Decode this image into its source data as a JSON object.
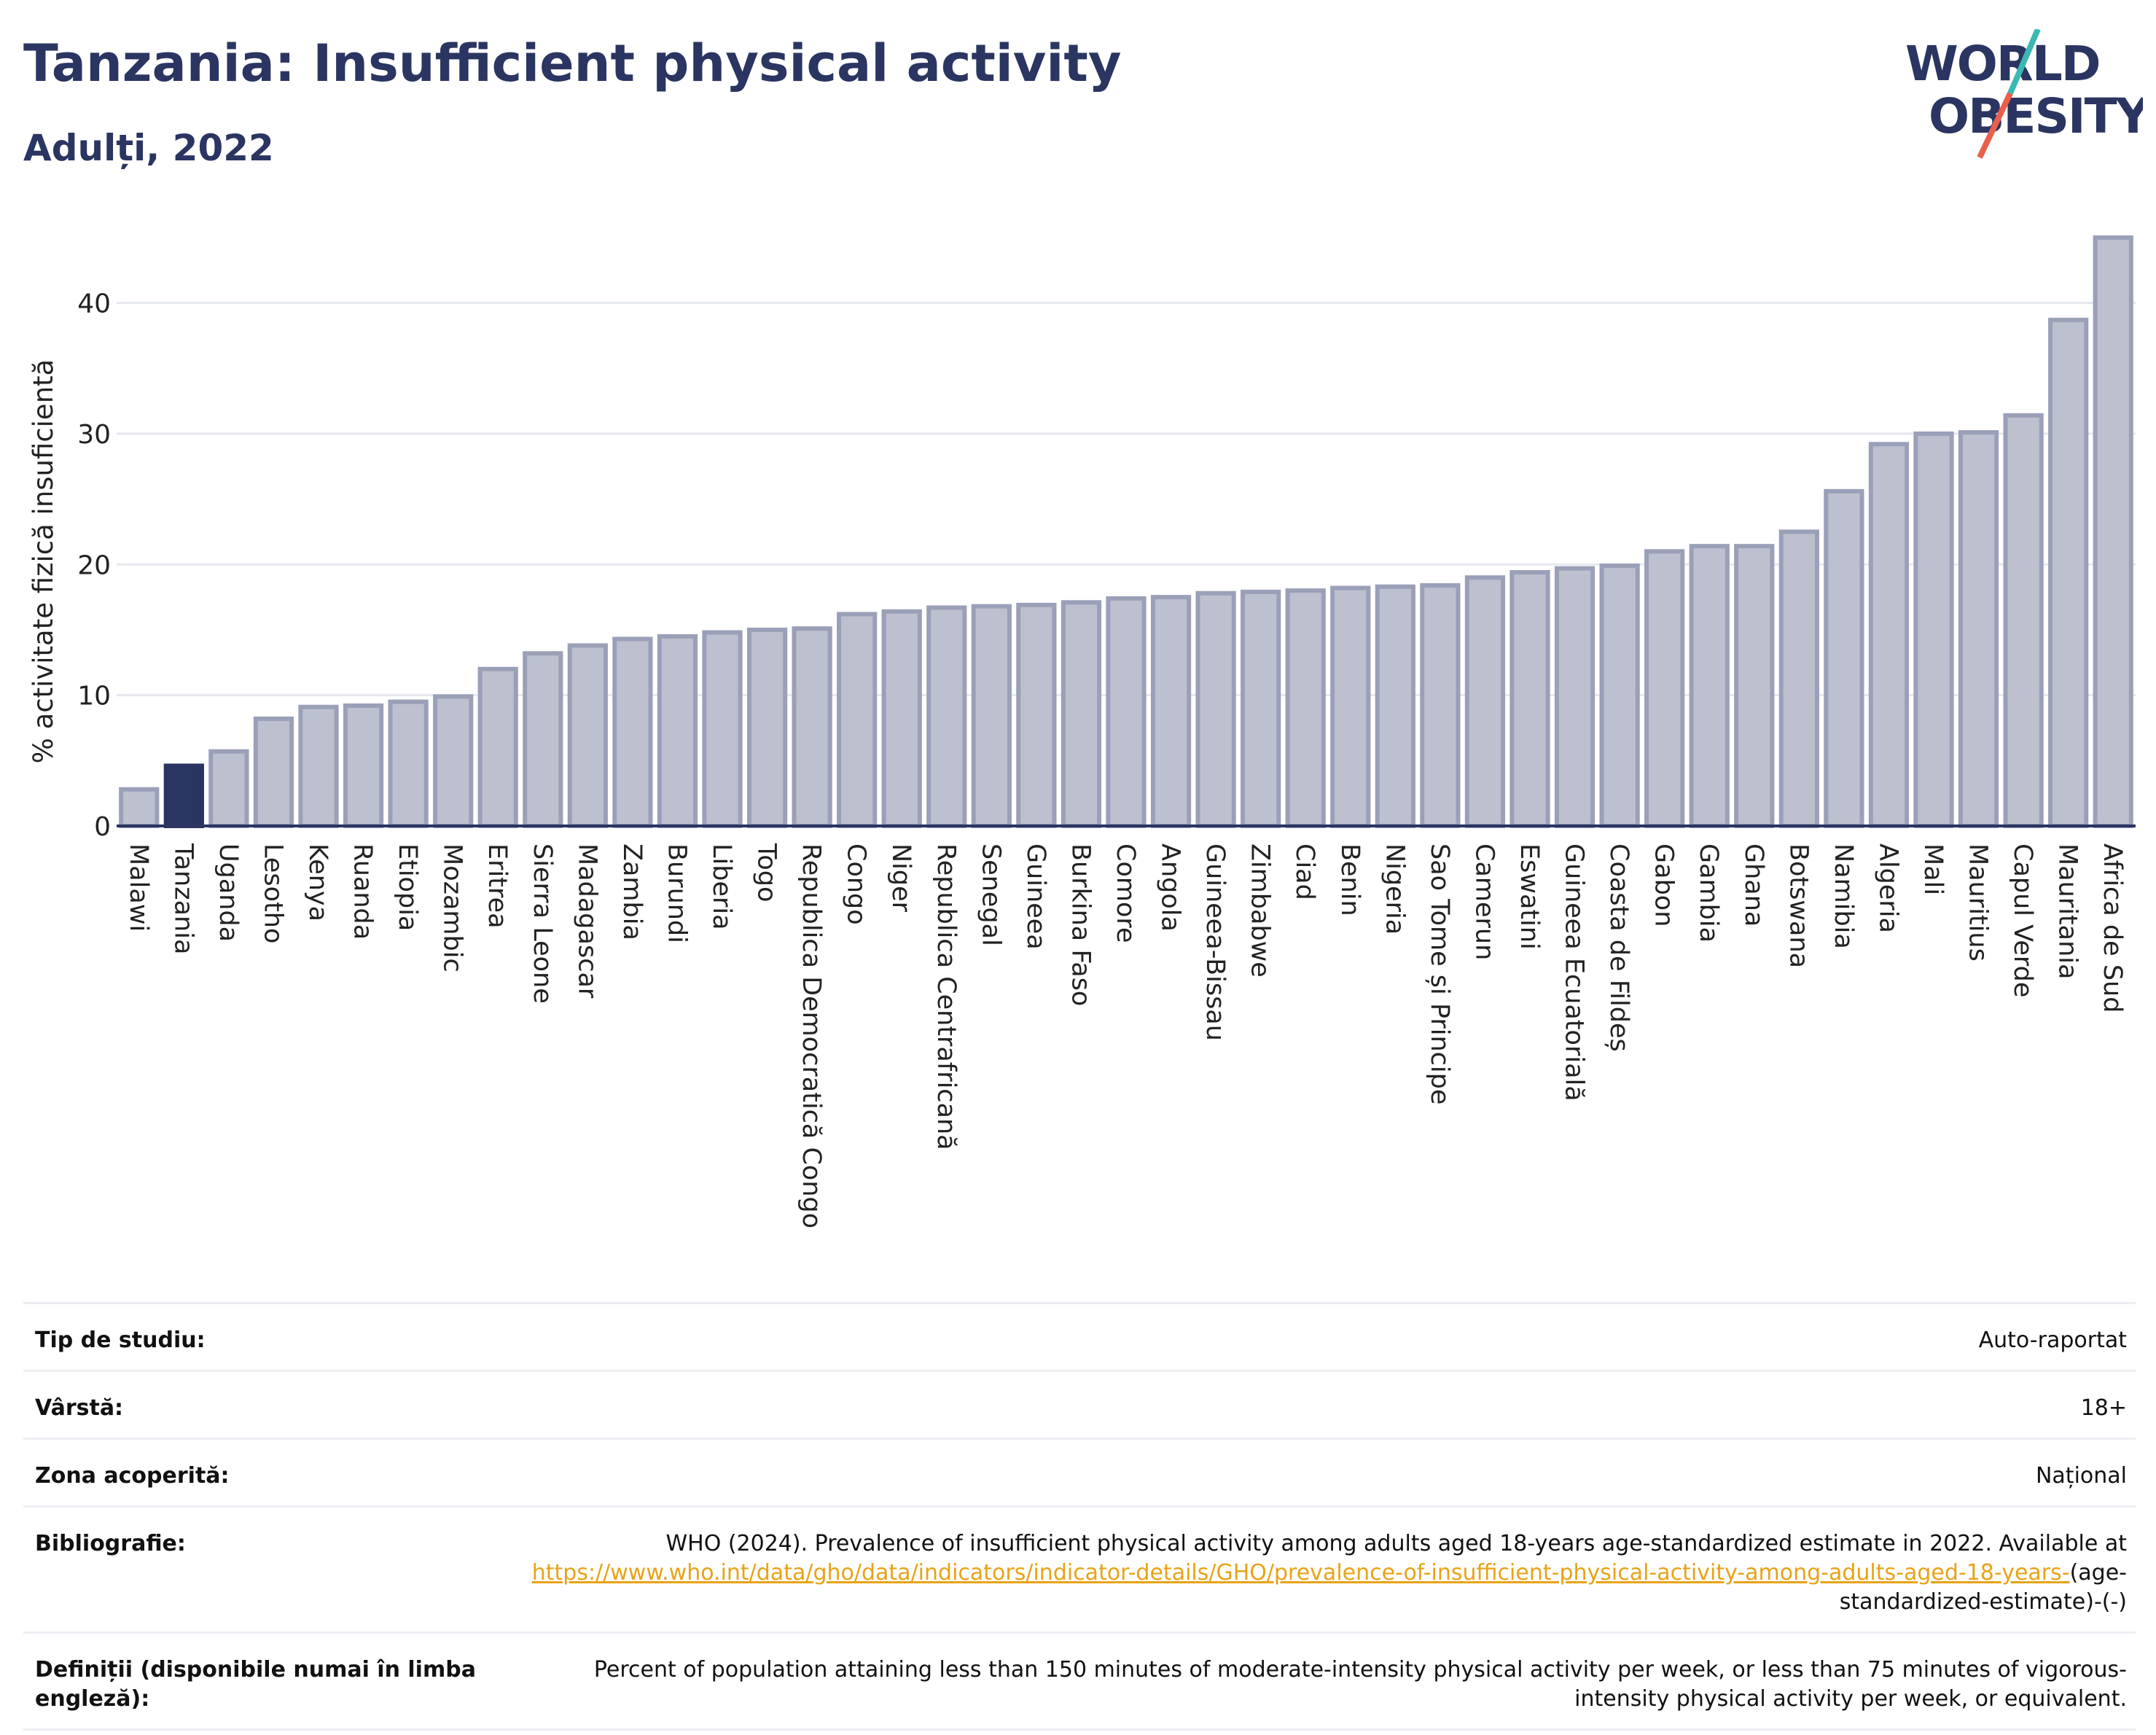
{
  "header": {
    "title": "Tanzania: Insufficient physical activity",
    "subtitle": "Adulți, 2022"
  },
  "logo": {
    "line1": "WORLD",
    "line2": "OBESITY"
  },
  "colors": {
    "bar": "#bcc0cf",
    "bar_border": "#9aa0b8",
    "highlight": "#2a3561",
    "axis_text": "#222222",
    "grid": "#e6e8ef",
    "logo_red": "#e8604c",
    "logo_teal": "#3bb8b3"
  },
  "chart_data": {
    "type": "bar",
    "ylabel": "% activitate fizică insuficientă",
    "ylim": [
      0,
      47
    ],
    "yticks": [
      0,
      10,
      20,
      30,
      40
    ],
    "grid": true,
    "highlight": "Tanzania",
    "categories": [
      "Malawi",
      "Tanzania",
      "Uganda",
      "Lesotho",
      "Kenya",
      "Ruanda",
      "Etiopia",
      "Mozambic",
      "Eritrea",
      "Sierra Leone",
      "Madagascar",
      "Zambia",
      "Burundi",
      "Liberia",
      "Togo",
      "Republica Democratică Congo",
      "Congo",
      "Niger",
      "Republica Centrafricană",
      "Senegal",
      "Guineea",
      "Burkina Faso",
      "Comore",
      "Angola",
      "Guineea-Bissau",
      "Zimbabwe",
      "Ciad",
      "Benin",
      "Nigeria",
      "Sao Tome și Principe",
      "Camerun",
      "Eswatini",
      "Guineea Ecuatorială",
      "Coasta de Fildeș",
      "Gabon",
      "Gambia",
      "Ghana",
      "Botswana",
      "Namibia",
      "Algeria",
      "Mali",
      "Mauritius",
      "Capul Verde",
      "Mauritania",
      "Africa de Sud"
    ],
    "values": [
      2.8,
      4.6,
      5.7,
      8.2,
      9.1,
      9.2,
      9.5,
      9.9,
      12.0,
      13.2,
      13.8,
      14.3,
      14.5,
      14.8,
      15.0,
      15.1,
      16.2,
      16.4,
      16.7,
      16.8,
      16.9,
      17.1,
      17.4,
      17.5,
      17.8,
      17.9,
      18.0,
      18.2,
      18.3,
      18.4,
      19.0,
      19.4,
      19.7,
      19.9,
      21.0,
      21.4,
      21.4,
      22.5,
      25.6,
      29.2,
      30.0,
      30.1,
      31.4,
      38.7,
      45.0
    ]
  },
  "info": {
    "study_type_label": "Tip de studiu:",
    "study_type_value": "Auto-raportat",
    "age_label": "Vârstă:",
    "age_value": "18+",
    "coverage_label": "Zona acoperită:",
    "coverage_value": "Național",
    "bibliography_label": "Bibliografie:",
    "bibliography_text": "WHO (2024). Prevalence of insufficient physical activity among adults aged 18-years age-standardized estimate in 2022. Available at ",
    "bibliography_link": "https://www.who.int/data/gho/data/indicators/indicator-details/GHO/prevalence-of-insufficient-physical-activity-among-adults-aged-18-years-",
    "bibliography_suffix": "(age-standardized-estimate)-(-)",
    "definitions_label": "Definiții (disponibile numai în limba engleză):",
    "definitions_value": "Percent of population attaining less than 150 minutes of moderate-intensity physical activity per week, or less than 75 minutes of vigorous-intensity physical activity per week, or equivalent."
  }
}
